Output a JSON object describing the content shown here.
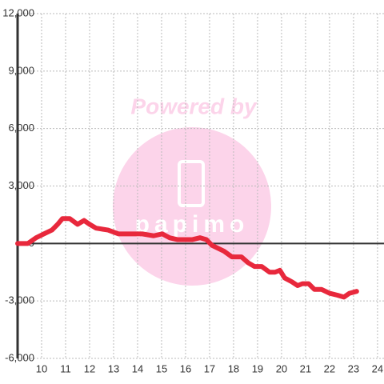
{
  "chart_data": {
    "type": "line",
    "watermark": "Powered by",
    "logo_text": "papimo",
    "x": [
      9.0,
      9.43,
      9.77,
      10.1,
      10.43,
      10.67,
      10.87,
      11.17,
      11.5,
      11.77,
      12.0,
      12.27,
      12.77,
      13.2,
      14.2,
      14.67,
      15.03,
      15.33,
      15.67,
      16.27,
      16.6,
      16.87,
      17.1,
      17.6,
      17.93,
      18.33,
      18.6,
      18.87,
      19.17,
      19.5,
      19.73,
      19.93,
      20.13,
      20.43,
      20.67,
      20.87,
      21.13,
      21.37,
      21.67,
      22.0,
      22.33,
      22.6,
      22.83,
      23.13
    ],
    "series": [
      {
        "color": "#e8283c",
        "values": [
          0,
          0,
          300,
          500,
          700,
          1000,
          1300,
          1300,
          1000,
          1200,
          1000,
          800,
          700,
          500,
          500,
          400,
          500,
          300,
          200,
          200,
          300,
          200,
          -100,
          -400,
          -700,
          -700,
          -1000,
          -1200,
          -1200,
          -1500,
          -1500,
          -1400,
          -1800,
          -2000,
          -2200,
          -2100,
          -2100,
          -2400,
          -2400,
          -2600,
          -2700,
          -2800,
          -2600,
          -2500
        ]
      }
    ],
    "xlim": [
      9,
      24.27
    ],
    "xticks": [
      10,
      11,
      12,
      13,
      14,
      15,
      16,
      17,
      18,
      19,
      20,
      21,
      22,
      23,
      24
    ],
    "ylim": [
      -6000,
      12000
    ],
    "yticks": [
      {
        "value": -6000,
        "label": "-6,000"
      },
      {
        "value": -3000,
        "label": "-3,000"
      },
      0,
      {
        "value": 3000,
        "label": "3,000"
      },
      {
        "value": 6000,
        "label": "6,000"
      },
      {
        "value": 9000,
        "label": "9,000"
      },
      {
        "value": 12000,
        "label": "12,000"
      }
    ],
    "grid": true
  }
}
